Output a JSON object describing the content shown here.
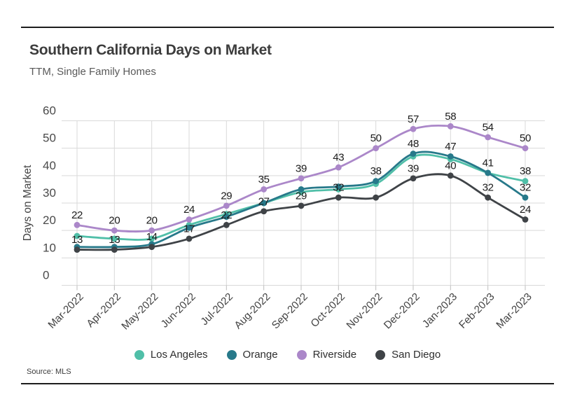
{
  "header": {
    "title": "Southern California Days on Market",
    "subtitle": "TTM, Single Family Homes"
  },
  "footer": {
    "source": "Source: MLS"
  },
  "colors": {
    "rule": "#1d1d1d",
    "grid": "#d9d9d9",
    "tick": "#bdbdbd",
    "axis_text": "#4a4a4a",
    "data_label": "#1a1a1a",
    "los_angeles": "#50bfa8",
    "orange": "#27798a",
    "riverside": "#ab87c9",
    "san_diego": "#3f4347"
  },
  "chart_data": {
    "type": "line",
    "title": "Southern California Days on Market",
    "subtitle": "TTM, Single Family Homes",
    "xlabel": "",
    "ylabel": "Days on Market",
    "ylim": [
      0,
      60
    ],
    "ytick_step": 10,
    "grid": true,
    "legend_position": "bottom",
    "marker": "circle",
    "categories": [
      "Mar-2022",
      "Apr-2022",
      "May-2022",
      "Jun-2022",
      "Jul-2022",
      "Aug-2022",
      "Sep-2022",
      "Oct-2022",
      "Nov-2022",
      "Dec-2022",
      "Jan-2023",
      "Feb-2023",
      "Mar-2023"
    ],
    "series": [
      {
        "name": "Los Angeles",
        "color": "#50bfa8",
        "values": [
          18,
          17,
          17,
          22,
          26,
          30,
          34,
          35,
          37,
          47,
          46,
          41,
          38
        ],
        "visible_labels": [
          12
        ]
      },
      {
        "name": "Orange",
        "color": "#27798a",
        "values": [
          14,
          14,
          15,
          21,
          25,
          30,
          35,
          36,
          38,
          48,
          47,
          41,
          32
        ],
        "visible_labels": [
          8,
          9,
          10,
          11,
          12
        ]
      },
      {
        "name": "Riverside",
        "color": "#ab87c9",
        "values": [
          22,
          20,
          20,
          24,
          29,
          35,
          39,
          43,
          50,
          57,
          58,
          54,
          50
        ],
        "visible_labels": [
          0,
          1,
          2,
          3,
          4,
          5,
          6,
          7,
          8,
          9,
          10,
          11,
          12
        ]
      },
      {
        "name": "San Diego",
        "color": "#3f4347",
        "values": [
          13,
          13,
          14,
          17,
          22,
          27,
          29,
          32,
          32,
          39,
          40,
          32,
          24
        ],
        "visible_labels": [
          0,
          1,
          2,
          3,
          4,
          5,
          6,
          7,
          9,
          10,
          11,
          12
        ]
      }
    ]
  }
}
